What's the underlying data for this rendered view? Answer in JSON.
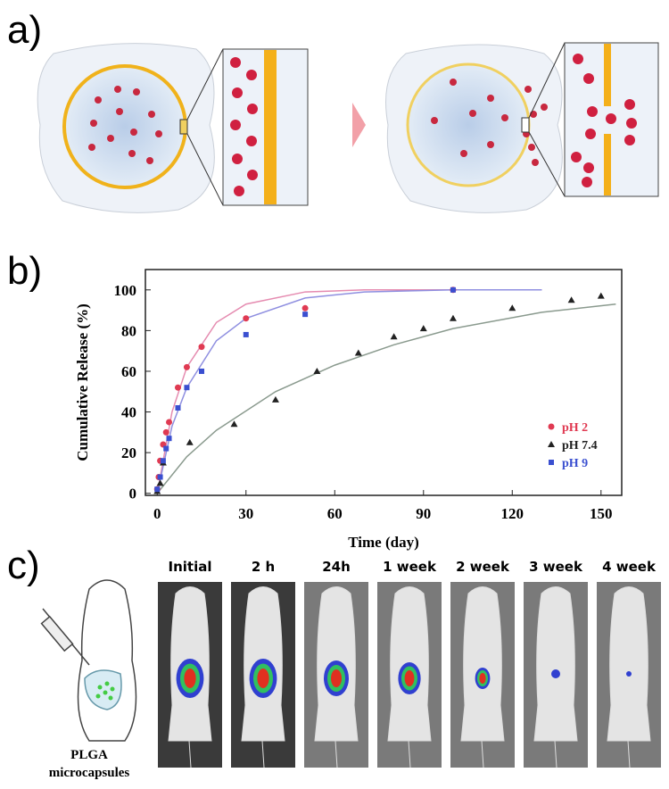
{
  "panel_labels": [
    "a)",
    "b)",
    "c)"
  ],
  "chart_data": {
    "type": "scatter",
    "x_label": "Time (day)",
    "y_label": "Cumulative Release (%)",
    "xlim": [
      -4,
      157
    ],
    "ylim": [
      -1,
      110
    ],
    "xticks": [
      0,
      30,
      60,
      90,
      120,
      150
    ],
    "yticks": [
      0,
      20,
      40,
      60,
      80,
      100
    ],
    "legend": "lower right",
    "series": [
      {
        "name": "pH 2",
        "color": "#e03a52",
        "marker": "circle",
        "x": [
          0,
          0.5,
          1,
          2,
          3,
          4,
          7,
          10,
          15,
          30,
          50,
          100
        ],
        "values": [
          2,
          8,
          16,
          24,
          30,
          35,
          52,
          62,
          72,
          86,
          91,
          100
        ]
      },
      {
        "name": "pH 7.4",
        "color": "#222222",
        "marker": "triangle",
        "x": [
          0,
          1,
          2,
          11,
          26,
          40,
          54,
          68,
          80,
          90,
          100,
          120,
          140,
          150
        ],
        "values": [
          1,
          5,
          15,
          25,
          34,
          46,
          60,
          69,
          77,
          81,
          86,
          91,
          95,
          97
        ]
      },
      {
        "name": "pH 9",
        "color": "#3a4fd0",
        "marker": "square",
        "x": [
          0,
          1,
          2,
          3,
          4,
          7,
          10,
          15,
          30,
          50,
          100
        ],
        "values": [
          2,
          8,
          16,
          22,
          27,
          42,
          52,
          60,
          78,
          88,
          100
        ]
      }
    ],
    "fits": [
      {
        "color": "#e58bb0",
        "x": [
          0,
          5,
          10,
          20,
          30,
          50,
          70,
          100,
          130
        ],
        "values": [
          0,
          40,
          62,
          84,
          93,
          99,
          100,
          100,
          100
        ]
      },
      {
        "color": "#8a9a8e",
        "x": [
          0,
          10,
          20,
          40,
          60,
          80,
          100,
          130,
          155
        ],
        "values": [
          0,
          18,
          31,
          50,
          63,
          73,
          81,
          89,
          93
        ]
      },
      {
        "color": "#8f8fe0",
        "x": [
          0,
          5,
          10,
          20,
          30,
          50,
          70,
          100,
          130
        ],
        "values": [
          0,
          33,
          52,
          75,
          86,
          96,
          99,
          100,
          100
        ]
      }
    ]
  },
  "imaging": {
    "timepoints": [
      "Initial",
      "2 h",
      "24h",
      "1 week",
      "2 week",
      "3 week",
      "4 week"
    ],
    "caption": [
      "PLGA",
      "microcapsules"
    ]
  }
}
